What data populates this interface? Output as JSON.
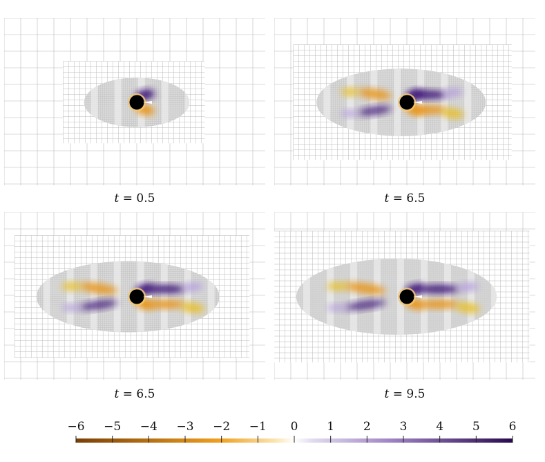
{
  "panels": [
    {
      "label_var": "t",
      "label_eq": " = ",
      "label_value": "0.5",
      "extent": 0.45,
      "trail": 0.0
    },
    {
      "label_var": "t",
      "label_eq": " = ",
      "label_value": "6.5",
      "extent": 0.82,
      "trail": 0.55
    },
    {
      "label_var": "t",
      "label_eq": " = ",
      "label_value": "6.5",
      "extent": 0.9,
      "trail": 0.85
    },
    {
      "label_var": "t",
      "label_eq": " = ",
      "label_value": "9.5",
      "extent": 1.0,
      "trail": 1.0
    }
  ],
  "colorbar": {
    "ticks": [
      "−6",
      "−5",
      "−4",
      "−3",
      "−2",
      "−1",
      "0",
      "1",
      "2",
      "3",
      "4",
      "5",
      "6"
    ],
    "range": [
      -6,
      6
    ],
    "negative_color": "#7a3f06",
    "negative_mid_color": "#f0a020",
    "zero_color": "#ffffff",
    "positive_mid_color": "#9f84c5",
    "positive_color": "#2a0a4e"
  },
  "colors": {
    "obstacle": "#000000",
    "mesh_line": "#b8b8b8",
    "refined_region": "#d9d9d9",
    "orange_vortex": "#e8961c",
    "yellow_vortex": "#e7c02b",
    "purple_vortex": "#3d1578",
    "lilac_vortex": "#b6a0dc"
  }
}
